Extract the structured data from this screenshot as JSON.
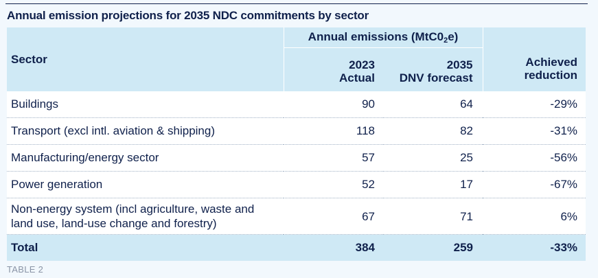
{
  "title": "Annual emission projections for 2035 NDC commitments by sector",
  "header": {
    "sector": "Sector",
    "group_label": "Annual emissions (MtC0",
    "group_sub": "2",
    "group_suffix": "e)",
    "col_2023_line1": "2023",
    "col_2023_line2": "Actual",
    "col_2035_line1": "2035",
    "col_2035_line2": "DNV forecast",
    "col_reduction_line1": "Achieved",
    "col_reduction_line2": "reduction"
  },
  "rows": [
    {
      "sector": "Buildings",
      "actual_2023": "90",
      "forecast_2035": "64",
      "reduction": "-29%"
    },
    {
      "sector": "Transport (excl intl. aviation & shipping)",
      "actual_2023": "118",
      "forecast_2035": "82",
      "reduction": "-31%"
    },
    {
      "sector": "Manufacturing/energy sector",
      "actual_2023": "57",
      "forecast_2035": "25",
      "reduction": "-56%"
    },
    {
      "sector": "Power generation",
      "actual_2023": "52",
      "forecast_2035": "17",
      "reduction": "-67%"
    },
    {
      "sector_line1": "Non-energy system (incl agriculture, waste and",
      "sector_line2": "land use, land-use change and forestry)",
      "actual_2023": "67",
      "forecast_2035": "71",
      "reduction": "6%"
    }
  ],
  "total": {
    "label": "Total",
    "actual_2023": "384",
    "forecast_2035": "259",
    "reduction": "-33%"
  },
  "footer": "TABLE 2",
  "colors": {
    "header_bg": "#cfe9f5",
    "text": "#0f204b",
    "page_bg": "#f2f8fd"
  }
}
